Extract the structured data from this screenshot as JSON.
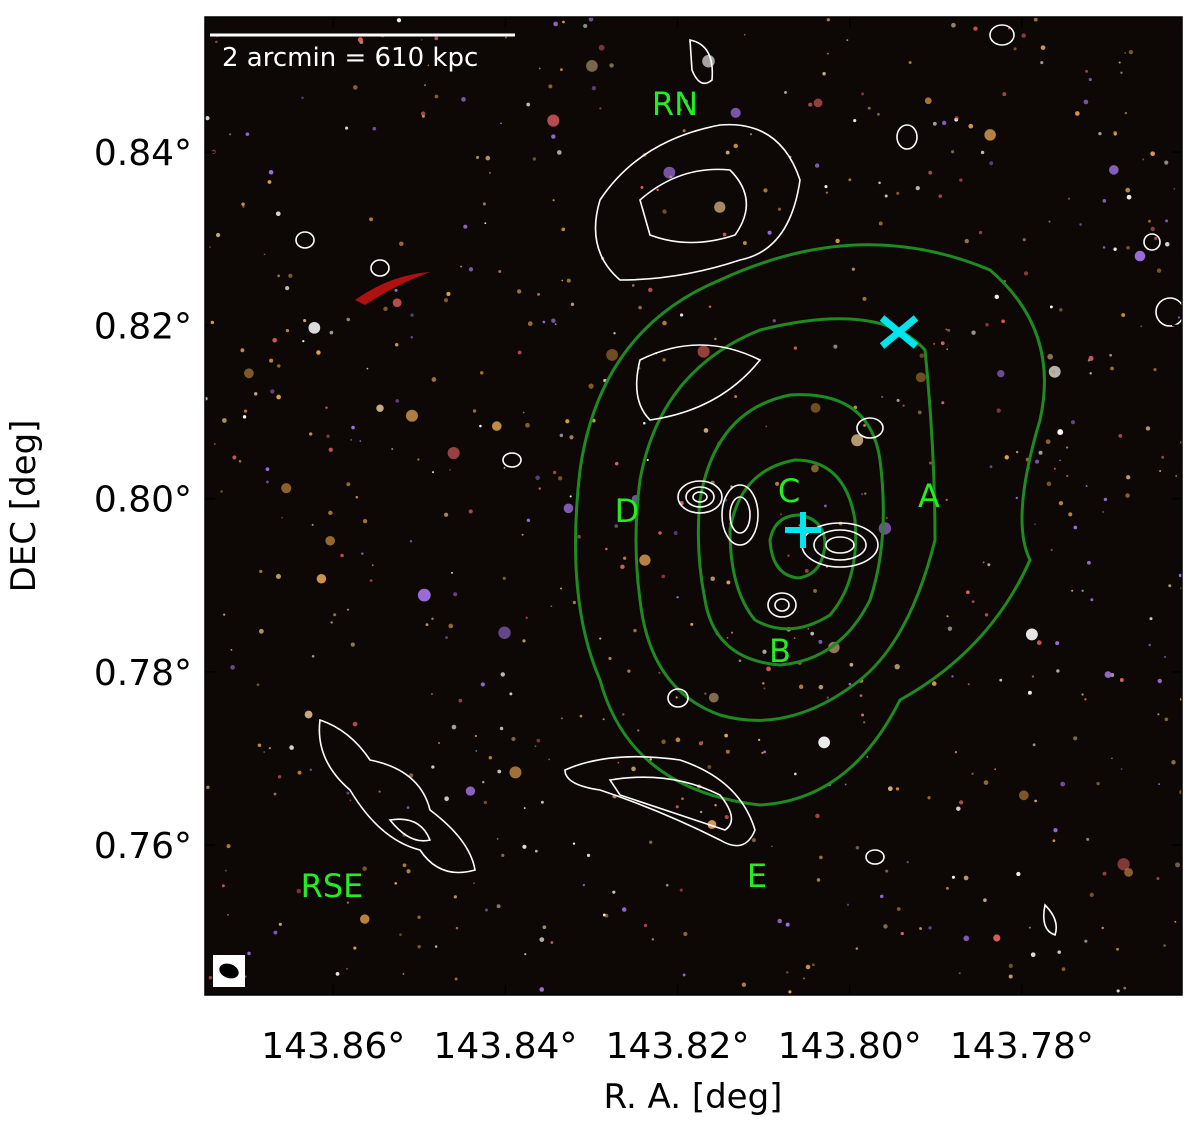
{
  "chart_data": {
    "type": "image",
    "xlabel": "R. A. [deg]",
    "ylabel": "DEC [deg]",
    "xlim": [
      143.8749,
      143.7614
    ],
    "ylim": [
      0.7427,
      0.8556
    ],
    "xticks": [
      {
        "value": 143.86,
        "label": "143.86°"
      },
      {
        "value": 143.84,
        "label": "143.84°"
      },
      {
        "value": 143.82,
        "label": "143.82°"
      },
      {
        "value": 143.8,
        "label": "143.80°"
      },
      {
        "value": 143.78,
        "label": "143.78°"
      }
    ],
    "yticks": [
      {
        "value": 0.84,
        "label": "0.84°"
      },
      {
        "value": 0.82,
        "label": "0.82°"
      },
      {
        "value": 0.8,
        "label": "0.80°"
      },
      {
        "value": 0.78,
        "label": "0.78°"
      },
      {
        "value": 0.76,
        "label": "0.76°"
      }
    ],
    "scale_bar": "2 arcmin = 610 kpc",
    "annotations": [
      "RN",
      "D",
      "C",
      "A",
      "B",
      "E",
      "RSE"
    ]
  }
}
